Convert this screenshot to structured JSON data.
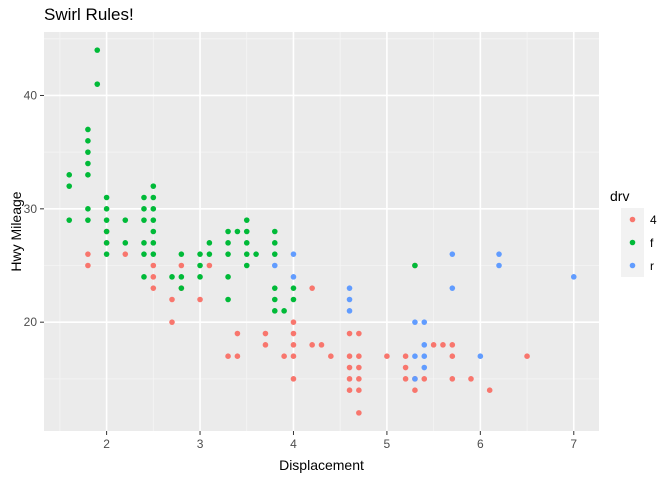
{
  "chart_data": {
    "type": "scatter",
    "title": "Swirl Rules!",
    "xlabel": "Displacement",
    "ylabel": "Hwy Mileage",
    "xlim": [
      1.33,
      7.27
    ],
    "ylim": [
      10.4,
      45.6
    ],
    "x_ticks": [
      2,
      3,
      4,
      5,
      6,
      7
    ],
    "y_ticks": [
      20,
      30,
      40
    ],
    "grid": true,
    "legend": {
      "title": "drv",
      "position": "right",
      "entries": [
        {
          "label": "4",
          "color": "#F8766D"
        },
        {
          "label": "f",
          "color": "#00BA38"
        },
        {
          "label": "r",
          "color": "#619CFF"
        }
      ]
    },
    "series": [
      {
        "name": "4",
        "color": "#F8766D",
        "points": [
          [
            1.8,
            26
          ],
          [
            1.8,
            25
          ],
          [
            2.0,
            28
          ],
          [
            2.0,
            27
          ],
          [
            2.2,
            26
          ],
          [
            2.5,
            25
          ],
          [
            2.5,
            24
          ],
          [
            2.5,
            23
          ],
          [
            2.7,
            20
          ],
          [
            2.7,
            22
          ],
          [
            2.8,
            25
          ],
          [
            2.8,
            23
          ],
          [
            3.0,
            22
          ],
          [
            3.1,
            25
          ],
          [
            3.3,
            17
          ],
          [
            3.4,
            19
          ],
          [
            3.4,
            17
          ],
          [
            3.7,
            19
          ],
          [
            3.7,
            18
          ],
          [
            3.9,
            17
          ],
          [
            4.0,
            20
          ],
          [
            4.0,
            19
          ],
          [
            4.0,
            18
          ],
          [
            4.0,
            17
          ],
          [
            4.0,
            15
          ],
          [
            4.2,
            18
          ],
          [
            4.2,
            23
          ],
          [
            4.3,
            18
          ],
          [
            4.4,
            17
          ],
          [
            4.6,
            17
          ],
          [
            4.6,
            15
          ],
          [
            4.6,
            16
          ],
          [
            4.6,
            14
          ],
          [
            4.6,
            19
          ],
          [
            4.7,
            19
          ],
          [
            4.7,
            17
          ],
          [
            4.7,
            16
          ],
          [
            4.7,
            15
          ],
          [
            4.7,
            12
          ],
          [
            4.7,
            14
          ],
          [
            5.0,
            17
          ],
          [
            5.2,
            17
          ],
          [
            5.2,
            16
          ],
          [
            5.2,
            15
          ],
          [
            5.3,
            15
          ],
          [
            5.3,
            14
          ],
          [
            5.4,
            15
          ],
          [
            5.5,
            18
          ],
          [
            5.6,
            18
          ],
          [
            5.7,
            17
          ],
          [
            5.7,
            18
          ],
          [
            5.7,
            15
          ],
          [
            5.9,
            15
          ],
          [
            6.1,
            14
          ],
          [
            6.5,
            17
          ],
          [
            5.3,
            25
          ]
        ]
      },
      {
        "name": "f",
        "color": "#00BA38",
        "points": [
          [
            1.6,
            33
          ],
          [
            1.6,
            32
          ],
          [
            1.6,
            29
          ],
          [
            1.8,
            37
          ],
          [
            1.8,
            36
          ],
          [
            1.8,
            35
          ],
          [
            1.8,
            34
          ],
          [
            1.8,
            33
          ],
          [
            1.8,
            30
          ],
          [
            1.8,
            29
          ],
          [
            1.9,
            44
          ],
          [
            1.9,
            41
          ],
          [
            2.0,
            31
          ],
          [
            2.0,
            30
          ],
          [
            2.0,
            29
          ],
          [
            2.0,
            28
          ],
          [
            2.0,
            27
          ],
          [
            2.0,
            26
          ],
          [
            2.2,
            29
          ],
          [
            2.2,
            27
          ],
          [
            2.4,
            31
          ],
          [
            2.4,
            30
          ],
          [
            2.4,
            29
          ],
          [
            2.4,
            27
          ],
          [
            2.4,
            26
          ],
          [
            2.4,
            24
          ],
          [
            2.5,
            32
          ],
          [
            2.5,
            31
          ],
          [
            2.5,
            30
          ],
          [
            2.5,
            29
          ],
          [
            2.5,
            28
          ],
          [
            2.5,
            27
          ],
          [
            2.5,
            26
          ],
          [
            2.7,
            24
          ],
          [
            2.8,
            26
          ],
          [
            2.8,
            24
          ],
          [
            2.8,
            23
          ],
          [
            3.0,
            26
          ],
          [
            3.0,
            25
          ],
          [
            3.0,
            24
          ],
          [
            3.1,
            27
          ],
          [
            3.1,
            26
          ],
          [
            3.3,
            28
          ],
          [
            3.3,
            27
          ],
          [
            3.3,
            26
          ],
          [
            3.3,
            24
          ],
          [
            3.3,
            22
          ],
          [
            3.4,
            28
          ],
          [
            3.5,
            29
          ],
          [
            3.5,
            28
          ],
          [
            3.5,
            27
          ],
          [
            3.5,
            26
          ],
          [
            3.5,
            25
          ],
          [
            3.6,
            26
          ],
          [
            3.8,
            28
          ],
          [
            3.8,
            27
          ],
          [
            3.8,
            26
          ],
          [
            3.8,
            23
          ],
          [
            3.8,
            22
          ],
          [
            3.8,
            21
          ],
          [
            3.9,
            21
          ],
          [
            4.0,
            23
          ],
          [
            4.0,
            22
          ],
          [
            5.3,
            25
          ]
        ]
      },
      {
        "name": "r",
        "color": "#619CFF",
        "points": [
          [
            3.8,
            25
          ],
          [
            4.0,
            26
          ],
          [
            4.0,
            24
          ],
          [
            4.6,
            23
          ],
          [
            4.6,
            22
          ],
          [
            4.6,
            21
          ],
          [
            5.3,
            20
          ],
          [
            5.3,
            17
          ],
          [
            5.3,
            15
          ],
          [
            5.4,
            20
          ],
          [
            5.4,
            18
          ],
          [
            5.4,
            17
          ],
          [
            5.4,
            16
          ],
          [
            5.7,
            26
          ],
          [
            5.7,
            23
          ],
          [
            6.0,
            17
          ],
          [
            6.2,
            26
          ],
          [
            6.2,
            25
          ],
          [
            7.0,
            24
          ]
        ]
      }
    ]
  }
}
